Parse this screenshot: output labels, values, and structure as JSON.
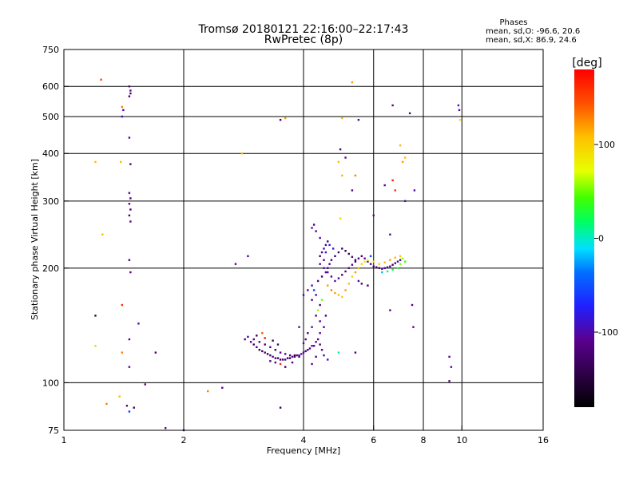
{
  "header": {
    "title": "Tromsø 20180121 22:16:00–22:17:43",
    "subtitle": "RwPretec (8p)",
    "phases_title": "Phases",
    "phases_o": "mean, sd,O: -96.6, 20.6",
    "phases_x": "mean, sd,X:  86.9, 24.6"
  },
  "colorbar": {
    "label": "[deg]",
    "range": [
      -180,
      180
    ],
    "ticks": [
      {
        "value": 100,
        "label": "100"
      },
      {
        "value": 0,
        "label": "0"
      },
      {
        "value": -100,
        "label": "-100"
      }
    ]
  },
  "chart_data": {
    "type": "scatter",
    "xlabel": "Frequency [MHz]",
    "ylabel": "Stationary phase Virtual Height [km]",
    "x_scale": "log",
    "y_scale": "log",
    "xlim": [
      1,
      16
    ],
    "ylim": [
      75,
      750
    ],
    "x_ticks": [
      {
        "value": 1,
        "label": "1"
      },
      {
        "value": 2,
        "label": "2"
      },
      {
        "value": 4,
        "label": "4"
      },
      {
        "value": 6,
        "label": "6"
      },
      {
        "value": 8,
        "label": "8"
      },
      {
        "value": 10,
        "label": "10"
      },
      {
        "value": 16,
        "label": "16"
      }
    ],
    "x_grid": [
      2,
      4,
      6,
      8,
      10
    ],
    "y_ticks": [
      {
        "value": 75,
        "label": "75"
      },
      {
        "value": 100,
        "label": "100"
      },
      {
        "value": 200,
        "label": "200"
      },
      {
        "value": 300,
        "label": "300"
      },
      {
        "value": 400,
        "label": "400"
      },
      {
        "value": 500,
        "label": "500"
      },
      {
        "value": 600,
        "label": "600"
      },
      {
        "value": 750,
        "label": "750"
      }
    ],
    "y_grid": [
      100,
      200,
      300,
      400,
      500,
      600
    ],
    "grid": true,
    "points": [
      [
        1.24,
        625,
        150
      ],
      [
        1.46,
        600,
        -110
      ],
      [
        1.47,
        585,
        -110
      ],
      [
        1.47,
        575,
        -120
      ],
      [
        1.46,
        565,
        -120
      ],
      [
        1.4,
        530,
        130
      ],
      [
        1.41,
        520,
        -100
      ],
      [
        1.4,
        500,
        -100
      ],
      [
        1.46,
        440,
        -110
      ],
      [
        1.2,
        380,
        110
      ],
      [
        1.39,
        380,
        110
      ],
      [
        1.47,
        375,
        -120
      ],
      [
        1.46,
        315,
        -110
      ],
      [
        1.47,
        305,
        -120
      ],
      [
        1.46,
        295,
        -110
      ],
      [
        1.47,
        285,
        -130
      ],
      [
        1.46,
        275,
        -120
      ],
      [
        1.47,
        265,
        -110
      ],
      [
        1.25,
        245,
        110
      ],
      [
        1.46,
        210,
        -120
      ],
      [
        1.47,
        195,
        -110
      ],
      [
        1.4,
        160,
        160
      ],
      [
        1.2,
        150,
        -140
      ],
      [
        1.54,
        143,
        -100
      ],
      [
        1.46,
        130,
        -110
      ],
      [
        1.2,
        125,
        60
      ],
      [
        1.4,
        120,
        130
      ],
      [
        1.7,
        120,
        -120
      ],
      [
        1.46,
        110,
        -110
      ],
      [
        1.6,
        99,
        -110
      ],
      [
        1.38,
        92,
        110
      ],
      [
        1.28,
        88,
        130
      ],
      [
        1.44,
        87,
        -110
      ],
      [
        1.5,
        86,
        -130
      ],
      [
        1.46,
        84,
        -60
      ],
      [
        1.8,
        76,
        -110
      ],
      [
        2.0,
        75,
        -110
      ],
      [
        1.35,
        74,
        -130
      ],
      [
        2.3,
        95,
        130
      ],
      [
        2.5,
        97,
        -110
      ],
      [
        2.7,
        205,
        -110
      ],
      [
        2.9,
        215,
        -100
      ],
      [
        2.8,
        400,
        110
      ],
      [
        3.5,
        490,
        -120
      ],
      [
        3.6,
        495,
        120
      ],
      [
        5.3,
        615,
        120
      ],
      [
        5.0,
        495,
        110
      ],
      [
        5.5,
        490,
        -100
      ],
      [
        6.7,
        535,
        -110
      ],
      [
        7.4,
        510,
        -120
      ],
      [
        9.8,
        535,
        -90
      ],
      [
        9.85,
        520,
        -100
      ],
      [
        9.9,
        490,
        90
      ],
      [
        4.95,
        410,
        -120
      ],
      [
        5.1,
        390,
        -110
      ],
      [
        4.9,
        380,
        110
      ],
      [
        5.0,
        350,
        110
      ],
      [
        5.4,
        350,
        130
      ],
      [
        5.3,
        320,
        -110
      ],
      [
        6.4,
        330,
        -100
      ],
      [
        6.7,
        340,
        170
      ],
      [
        6.8,
        320,
        160
      ],
      [
        7.0,
        420,
        110
      ],
      [
        7.2,
        390,
        110
      ],
      [
        7.1,
        380,
        120
      ],
      [
        7.6,
        320,
        -100
      ],
      [
        7.2,
        300,
        -100
      ],
      [
        4.95,
        270,
        100
      ],
      [
        6.0,
        275,
        -110
      ],
      [
        6.6,
        245,
        -100
      ],
      [
        7.5,
        160,
        -110
      ],
      [
        7.55,
        140,
        -110
      ],
      [
        6.6,
        155,
        -110
      ],
      [
        4.9,
        120,
        10
      ],
      [
        5.4,
        120,
        -120
      ],
      [
        9.3,
        117,
        -110
      ],
      [
        9.4,
        110,
        -100
      ],
      [
        9.3,
        101,
        -120
      ],
      [
        3.5,
        86,
        -140
      ],
      [
        2.85,
        130,
        -120
      ],
      [
        2.95,
        128,
        -110
      ],
      [
        3.0,
        126,
        -130
      ],
      [
        3.05,
        124,
        -120
      ],
      [
        3.1,
        122,
        -140
      ],
      [
        3.15,
        121,
        -130
      ],
      [
        3.2,
        120,
        -120
      ],
      [
        3.25,
        119,
        -140
      ],
      [
        3.3,
        118,
        -130
      ],
      [
        3.35,
        117,
        -120
      ],
      [
        3.4,
        116,
        -110
      ],
      [
        3.45,
        116,
        -130
      ],
      [
        3.5,
        115,
        -140
      ],
      [
        3.55,
        115,
        -120
      ],
      [
        3.6,
        115,
        -110
      ],
      [
        3.65,
        116,
        -130
      ],
      [
        3.7,
        116,
        -120
      ],
      [
        3.75,
        117,
        -110
      ],
      [
        3.8,
        117,
        -130
      ],
      [
        3.85,
        118,
        -120
      ],
      [
        3.9,
        118,
        -110
      ],
      [
        3.95,
        119,
        -100
      ],
      [
        4.0,
        120,
        -110
      ],
      [
        4.05,
        121,
        -120
      ],
      [
        4.1,
        122,
        -130
      ],
      [
        4.15,
        123,
        -110
      ],
      [
        4.2,
        125,
        -100
      ],
      [
        2.9,
        132,
        -100
      ],
      [
        3.0,
        130,
        -120
      ],
      [
        3.1,
        128,
        -110
      ],
      [
        3.2,
        126,
        -130
      ],
      [
        3.3,
        124,
        -120
      ],
      [
        3.4,
        122,
        -130
      ],
      [
        3.5,
        120,
        -110
      ],
      [
        3.6,
        119,
        -100
      ],
      [
        3.7,
        118,
        -120
      ],
      [
        3.8,
        118,
        -140
      ],
      [
        3.9,
        117,
        -130
      ],
      [
        3.05,
        133,
        -130
      ],
      [
        3.2,
        131,
        170
      ],
      [
        3.35,
        129,
        -140
      ],
      [
        3.45,
        126,
        -120
      ],
      [
        3.15,
        135,
        140
      ],
      [
        3.5,
        112,
        160
      ],
      [
        3.4,
        113,
        -120
      ],
      [
        3.3,
        114,
        -110
      ],
      [
        3.6,
        110,
        -130
      ],
      [
        3.75,
        113,
        -120
      ],
      [
        4.0,
        127,
        -100
      ],
      [
        4.05,
        130,
        -110
      ],
      [
        3.9,
        140,
        -100
      ],
      [
        4.25,
        125,
        -110
      ],
      [
        4.3,
        128,
        -100
      ],
      [
        4.35,
        130,
        -110
      ],
      [
        4.4,
        126,
        -120
      ],
      [
        4.45,
        122,
        -110
      ],
      [
        4.3,
        117,
        -120
      ],
      [
        4.2,
        112,
        -100
      ],
      [
        4.5,
        118,
        -100
      ],
      [
        4.6,
        115,
        -90
      ],
      [
        4.4,
        135,
        -100
      ],
      [
        4.5,
        140,
        -110
      ],
      [
        4.55,
        150,
        -120
      ],
      [
        4.4,
        160,
        -130
      ],
      [
        4.3,
        170,
        -100
      ],
      [
        4.2,
        165,
        -120
      ],
      [
        4.1,
        175,
        -110
      ],
      [
        4.0,
        170,
        -100
      ],
      [
        4.2,
        180,
        -90
      ],
      [
        4.35,
        185,
        -110
      ],
      [
        4.45,
        190,
        -120
      ],
      [
        4.55,
        195,
        -110
      ],
      [
        4.6,
        200,
        -100
      ],
      [
        4.65,
        205,
        -110
      ],
      [
        4.5,
        210,
        -120
      ],
      [
        4.4,
        215,
        -130
      ],
      [
        4.45,
        220,
        -110
      ],
      [
        4.5,
        225,
        -100
      ],
      [
        4.55,
        230,
        -110
      ],
      [
        4.6,
        235,
        -120
      ],
      [
        4.4,
        240,
        -100
      ],
      [
        4.3,
        250,
        -110
      ],
      [
        4.2,
        255,
        -100
      ],
      [
        4.25,
        260,
        -120
      ],
      [
        4.4,
        205,
        -100
      ],
      [
        4.5,
        200,
        -90
      ],
      [
        4.6,
        195,
        -100
      ],
      [
        4.7,
        190,
        -110
      ],
      [
        4.8,
        185,
        -100
      ],
      [
        4.9,
        188,
        -110
      ],
      [
        5.0,
        192,
        -120
      ],
      [
        5.1,
        196,
        -110
      ],
      [
        5.2,
        200,
        -100
      ],
      [
        5.3,
        204,
        -110
      ],
      [
        5.4,
        208,
        -120
      ],
      [
        5.5,
        212,
        -130
      ],
      [
        5.6,
        215,
        -120
      ],
      [
        5.7,
        212,
        -110
      ],
      [
        5.8,
        208,
        -100
      ],
      [
        5.9,
        205,
        -110
      ],
      [
        6.0,
        202,
        -120
      ],
      [
        6.1,
        201,
        -130
      ],
      [
        6.2,
        200,
        -120
      ],
      [
        6.3,
        199,
        -110
      ],
      [
        6.4,
        200,
        -100
      ],
      [
        6.5,
        201,
        -110
      ],
      [
        6.6,
        202,
        -120
      ],
      [
        6.7,
        204,
        -130
      ],
      [
        6.8,
        206,
        -110
      ],
      [
        6.9,
        208,
        -100
      ],
      [
        7.0,
        210,
        -110
      ],
      [
        4.7,
        210,
        -130
      ],
      [
        4.8,
        215,
        -140
      ],
      [
        4.9,
        220,
        -120
      ],
      [
        5.0,
        225,
        -130
      ],
      [
        5.1,
        222,
        -140
      ],
      [
        5.2,
        218,
        -130
      ],
      [
        5.3,
        214,
        -120
      ],
      [
        5.4,
        210,
        -130
      ],
      [
        4.55,
        220,
        -80
      ],
      [
        4.65,
        230,
        -70
      ],
      [
        4.75,
        225,
        -80
      ],
      [
        4.6,
        180,
        120
      ],
      [
        4.7,
        175,
        130
      ],
      [
        4.8,
        172,
        120
      ],
      [
        4.9,
        170,
        110
      ],
      [
        5.0,
        168,
        100
      ],
      [
        5.1,
        175,
        120
      ],
      [
        5.2,
        182,
        110
      ],
      [
        5.3,
        190,
        100
      ],
      [
        5.4,
        195,
        120
      ],
      [
        5.5,
        200,
        110
      ],
      [
        5.6,
        205,
        100
      ],
      [
        5.7,
        208,
        90
      ],
      [
        5.8,
        210,
        80
      ],
      [
        6.0,
        208,
        90
      ],
      [
        6.2,
        205,
        100
      ],
      [
        6.4,
        207,
        110
      ],
      [
        6.6,
        210,
        120
      ],
      [
        6.8,
        213,
        110
      ],
      [
        7.0,
        215,
        100
      ],
      [
        7.1,
        212,
        60
      ],
      [
        7.2,
        208,
        40
      ],
      [
        7.0,
        205,
        50
      ],
      [
        6.9,
        200,
        30
      ],
      [
        6.7,
        198,
        20
      ],
      [
        6.5,
        196,
        10
      ],
      [
        6.3,
        195,
        -20
      ],
      [
        5.9,
        215,
        -60
      ],
      [
        5.5,
        185,
        -110
      ],
      [
        5.6,
        182,
        -120
      ],
      [
        5.8,
        180,
        -130
      ],
      [
        4.3,
        150,
        -120
      ],
      [
        4.4,
        145,
        -110
      ],
      [
        4.2,
        140,
        -100
      ],
      [
        4.1,
        135,
        -110
      ],
      [
        4.35,
        155,
        60
      ],
      [
        4.45,
        165,
        50
      ],
      [
        4.25,
        175,
        -60
      ]
    ]
  }
}
